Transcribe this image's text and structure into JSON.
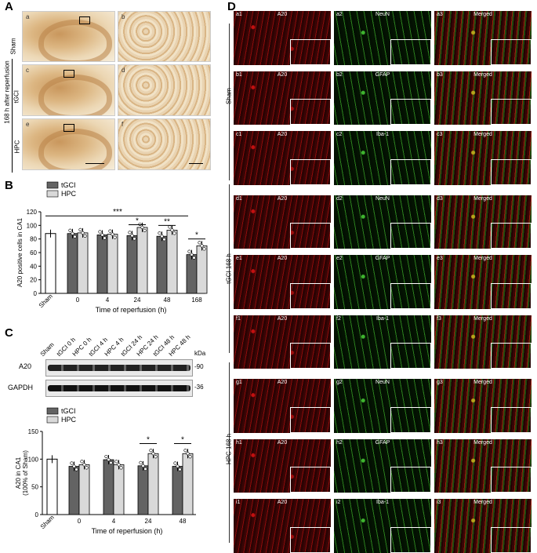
{
  "panel_a": {
    "label": "A",
    "rows": [
      {
        "group": "Sham",
        "left_tag": "a",
        "right_tag": "b"
      },
      {
        "group": "tGCI",
        "left_tag": "c",
        "right_tag": "d"
      },
      {
        "group": "HPC",
        "left_tag": "e",
        "right_tag": "f"
      }
    ],
    "side_label": "168 h after reperfusion"
  },
  "panel_b": {
    "label": "B",
    "legend": [
      "tGCI",
      "HPC"
    ],
    "ylabel": "A20 positive cells in CA1",
    "xlabel": "Time of reperfusion (h)",
    "yticks": [
      "0",
      "20",
      "40",
      "60",
      "80",
      "100",
      "120"
    ],
    "sig_main": "***",
    "sig_labels": [
      "*",
      "**",
      "*"
    ]
  },
  "panel_c": {
    "label": "C",
    "lanes": [
      "Sham",
      "tGCI 0 h",
      "HPC 0 h",
      "tGCI 4 h",
      "HPC 4 h",
      "tGCI 24 h",
      "HPC 24 h",
      "tGCI 48 h",
      "HPC 48 h"
    ],
    "kda": "kDa",
    "bands": [
      {
        "name": "A20",
        "size": "-90"
      },
      {
        "name": "GAPDH",
        "size": "-36"
      }
    ],
    "legend": [
      "tGCI",
      "HPC"
    ],
    "ylabel_1": "A20 in CA1",
    "ylabel_2": "(100% of Sham)",
    "xlabel": "Time of reperfusion (h)",
    "yticks": [
      "0",
      "50",
      "100",
      "150"
    ],
    "sig_labels": [
      "*",
      "*"
    ]
  },
  "panel_d": {
    "label": "D",
    "groups": [
      {
        "name": "Sham"
      },
      {
        "name": "tGCI 168 h"
      },
      {
        "name": "HPC 168 h"
      }
    ],
    "rows": [
      {
        "tags": [
          "a1",
          "a2",
          "a3"
        ],
        "stains": [
          "A20",
          "NeuN",
          "Merged"
        ]
      },
      {
        "tags": [
          "b1",
          "b2",
          "b3"
        ],
        "stains": [
          "A20",
          "GFAP",
          "Merged"
        ]
      },
      {
        "tags": [
          "c1",
          "c2",
          "c3"
        ],
        "stains": [
          "A20",
          "Iba-1",
          "Merged"
        ]
      },
      {
        "tags": [
          "d1",
          "d2",
          "d3"
        ],
        "stains": [
          "A20",
          "NeuN",
          "Merged"
        ]
      },
      {
        "tags": [
          "e1",
          "e2",
          "e3"
        ],
        "stains": [
          "A20",
          "GFAP",
          "Merged"
        ]
      },
      {
        "tags": [
          "f1",
          "f2",
          "f3"
        ],
        "stains": [
          "A20",
          "Iba-1",
          "Merged"
        ]
      },
      {
        "tags": [
          "g1",
          "g2",
          "g3"
        ],
        "stains": [
          "A20",
          "NeuN",
          "Merged"
        ]
      },
      {
        "tags": [
          "h1",
          "h2",
          "h3"
        ],
        "stains": [
          "A20",
          "GFAP",
          "Merged"
        ]
      },
      {
        "tags": [
          "i1",
          "i2",
          "i3"
        ],
        "stains": [
          "A20",
          "Iba-1",
          "Merged"
        ]
      }
    ]
  },
  "colors": {
    "tgci": "#636363",
    "hpc": "#d9d9d9",
    "sham": "#ffffff"
  },
  "chart_data": [
    {
      "type": "bar",
      "categories": [
        "Sham",
        "0",
        "4",
        "24",
        "48",
        "168"
      ],
      "series": [
        {
          "name": "tGCI",
          "values": [
            null,
            88,
            86,
            85,
            84,
            57
          ]
        },
        {
          "name": "HPC",
          "values": [
            null,
            89,
            87,
            97,
            93,
            70
          ]
        }
      ],
      "sham_value": 88,
      "xlabel": "Time of reperfusion (h)",
      "ylabel": "A20 positive cells in CA1",
      "ylim": [
        0,
        120
      ]
    },
    {
      "type": "bar",
      "categories": [
        "Sham",
        "0",
        "4",
        "24",
        "48"
      ],
      "series": [
        {
          "name": "tGCI",
          "values": [
            null,
            87,
            99,
            88,
            87
          ]
        },
        {
          "name": "HPC",
          "values": [
            null,
            90,
            90,
            110,
            110
          ]
        }
      ],
      "sham_value": 100,
      "xlabel": "Time of reperfusion (h)",
      "ylabel": "A20 in CA1 (100% of Sham)",
      "ylim": [
        0,
        150
      ]
    }
  ]
}
